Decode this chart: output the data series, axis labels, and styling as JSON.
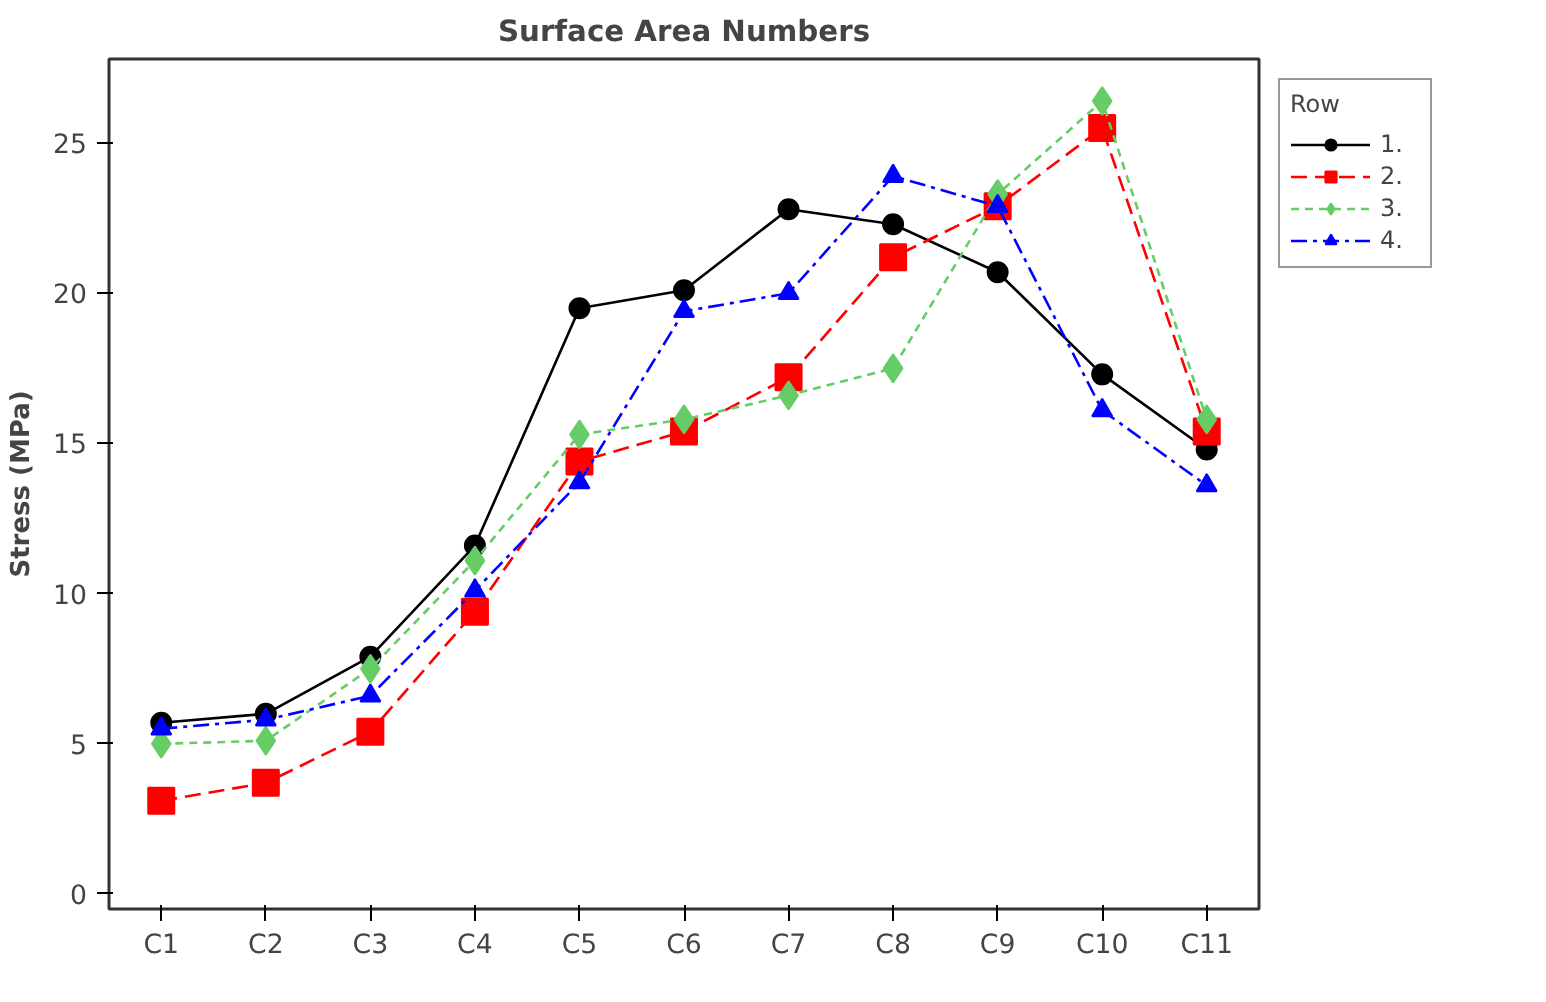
{
  "chart_data": {
    "type": "line",
    "title": "Surface Area Numbers",
    "ylabel": "Stress (MPa)",
    "legend_title": "Row",
    "categories": [
      "C1",
      "C2",
      "C3",
      "C4",
      "C5",
      "C6",
      "C7",
      "C8",
      "C9",
      "C10",
      "C11"
    ],
    "series": [
      {
        "name": "1.",
        "color": "#000000",
        "marker": "circle",
        "line_style": "solid",
        "values": [
          5.7,
          6.0,
          7.9,
          11.6,
          19.5,
          20.1,
          22.8,
          22.3,
          20.7,
          17.3,
          14.8
        ]
      },
      {
        "name": "2.",
        "color": "#ff0000",
        "marker": "square",
        "line_style": "dashed",
        "values": [
          3.1,
          3.7,
          5.4,
          9.4,
          14.4,
          15.4,
          17.2,
          21.2,
          22.9,
          25.5,
          15.4
        ]
      },
      {
        "name": "3.",
        "color": "#66cc66",
        "marker": "diamond",
        "line_style": "dotted",
        "values": [
          5.0,
          5.1,
          7.5,
          11.1,
          15.3,
          15.8,
          16.6,
          17.5,
          23.3,
          26.4,
          15.8
        ]
      },
      {
        "name": "4.",
        "color": "#0000ff",
        "marker": "triangle",
        "line_style": "dashdot",
        "values": [
          5.5,
          5.8,
          6.6,
          10.1,
          13.7,
          19.4,
          20.0,
          23.9,
          22.9,
          16.1,
          13.6
        ]
      }
    ],
    "ylim": [
      -0.5,
      27.8
    ],
    "yticks": [
      0,
      5,
      10,
      15,
      20,
      25
    ],
    "grid": false,
    "legend": "top right"
  }
}
